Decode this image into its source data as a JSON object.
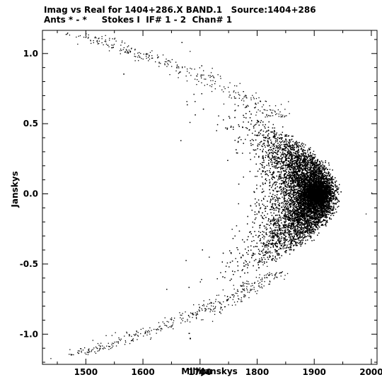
{
  "chart_data": {
    "type": "scatter",
    "title": "Imag vs Real for 1404+286.X BAND.1   Source:1404+286",
    "subtitle": "Ants * - *     Stokes I  IF# 1 - 2  Chan# 1",
    "xlabel": "MilliJanskys",
    "ylabel": "Janskys",
    "xlim": [
      1424,
      2010
    ],
    "ylim": [
      -1.215,
      1.165
    ],
    "x_ticks": [
      1500,
      1600,
      1700,
      1800,
      1900,
      2000
    ],
    "x_tick_labels": [
      "1500",
      "1600",
      "1700",
      "1800",
      "1900",
      "2000"
    ],
    "y_ticks": [
      1.0,
      0.5,
      0.0,
      -0.5,
      -1.0
    ],
    "y_tick_labels": [
      "1.0",
      "0.5",
      "0.0",
      "-0.5",
      "-1.0"
    ],
    "grid": false,
    "legend": "none",
    "point_color": "#000000",
    "distribution": {
      "description_shape": "parabolic arc opening left, dense core",
      "dense_core_x_range": [
        1790,
        1900
      ],
      "dense_core_y_range": [
        -0.5,
        0.5
      ],
      "arc_vertex": [
        1930,
        0.0
      ],
      "outer_tip_points": [
        {
          "x": 1465,
          "y": 1.14
        },
        {
          "x": 1438,
          "y": -1.17
        },
        {
          "x": 1485,
          "y": 1.07
        },
        {
          "x": 1470,
          "y": -1.14
        },
        {
          "x": 2000,
          "y": 0.01
        },
        {
          "x": 1990,
          "y": -0.14
        }
      ]
    }
  }
}
